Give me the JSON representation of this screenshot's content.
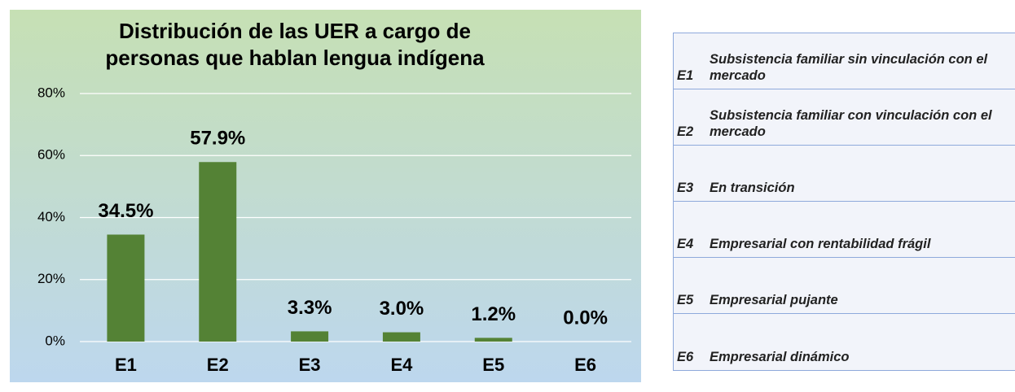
{
  "chart_data": {
    "type": "bar",
    "title": [
      "Distribución de las UER a cargo de",
      "personas que hablan lengua indígena"
    ],
    "categories": [
      "E1",
      "E2",
      "E3",
      "E4",
      "E5",
      "E6"
    ],
    "values": [
      34.5,
      57.9,
      3.3,
      3.0,
      1.2,
      0.0
    ],
    "value_labels": [
      "34.5%",
      "57.9%",
      "3.3%",
      "3.0%",
      "1.2%",
      "0.0%"
    ],
    "color": "#548235",
    "ylim": [
      0,
      80
    ],
    "yticks": [
      {
        "value": 0,
        "label": "0%"
      },
      {
        "value": 20,
        "label": "20%"
      },
      {
        "value": 40,
        "label": "40%"
      },
      {
        "value": 60,
        "label": "60%"
      },
      {
        "value": 80,
        "label": "80%"
      }
    ],
    "grid": true
  },
  "legend": {
    "rows": [
      {
        "code": "E1",
        "text": "Subsistencia familiar sin vinculación con el mercado"
      },
      {
        "code": "E2",
        "text": "Subsistencia familiar con vinculación con el mercado"
      },
      {
        "code": "E3",
        "text": "En transición"
      },
      {
        "code": "E4",
        "text": "Empresarial con rentabilidad frágil"
      },
      {
        "code": "E5",
        "text": "Empresarial pujante"
      },
      {
        "code": "E6",
        "text": "Empresarial dinámico"
      }
    ]
  }
}
